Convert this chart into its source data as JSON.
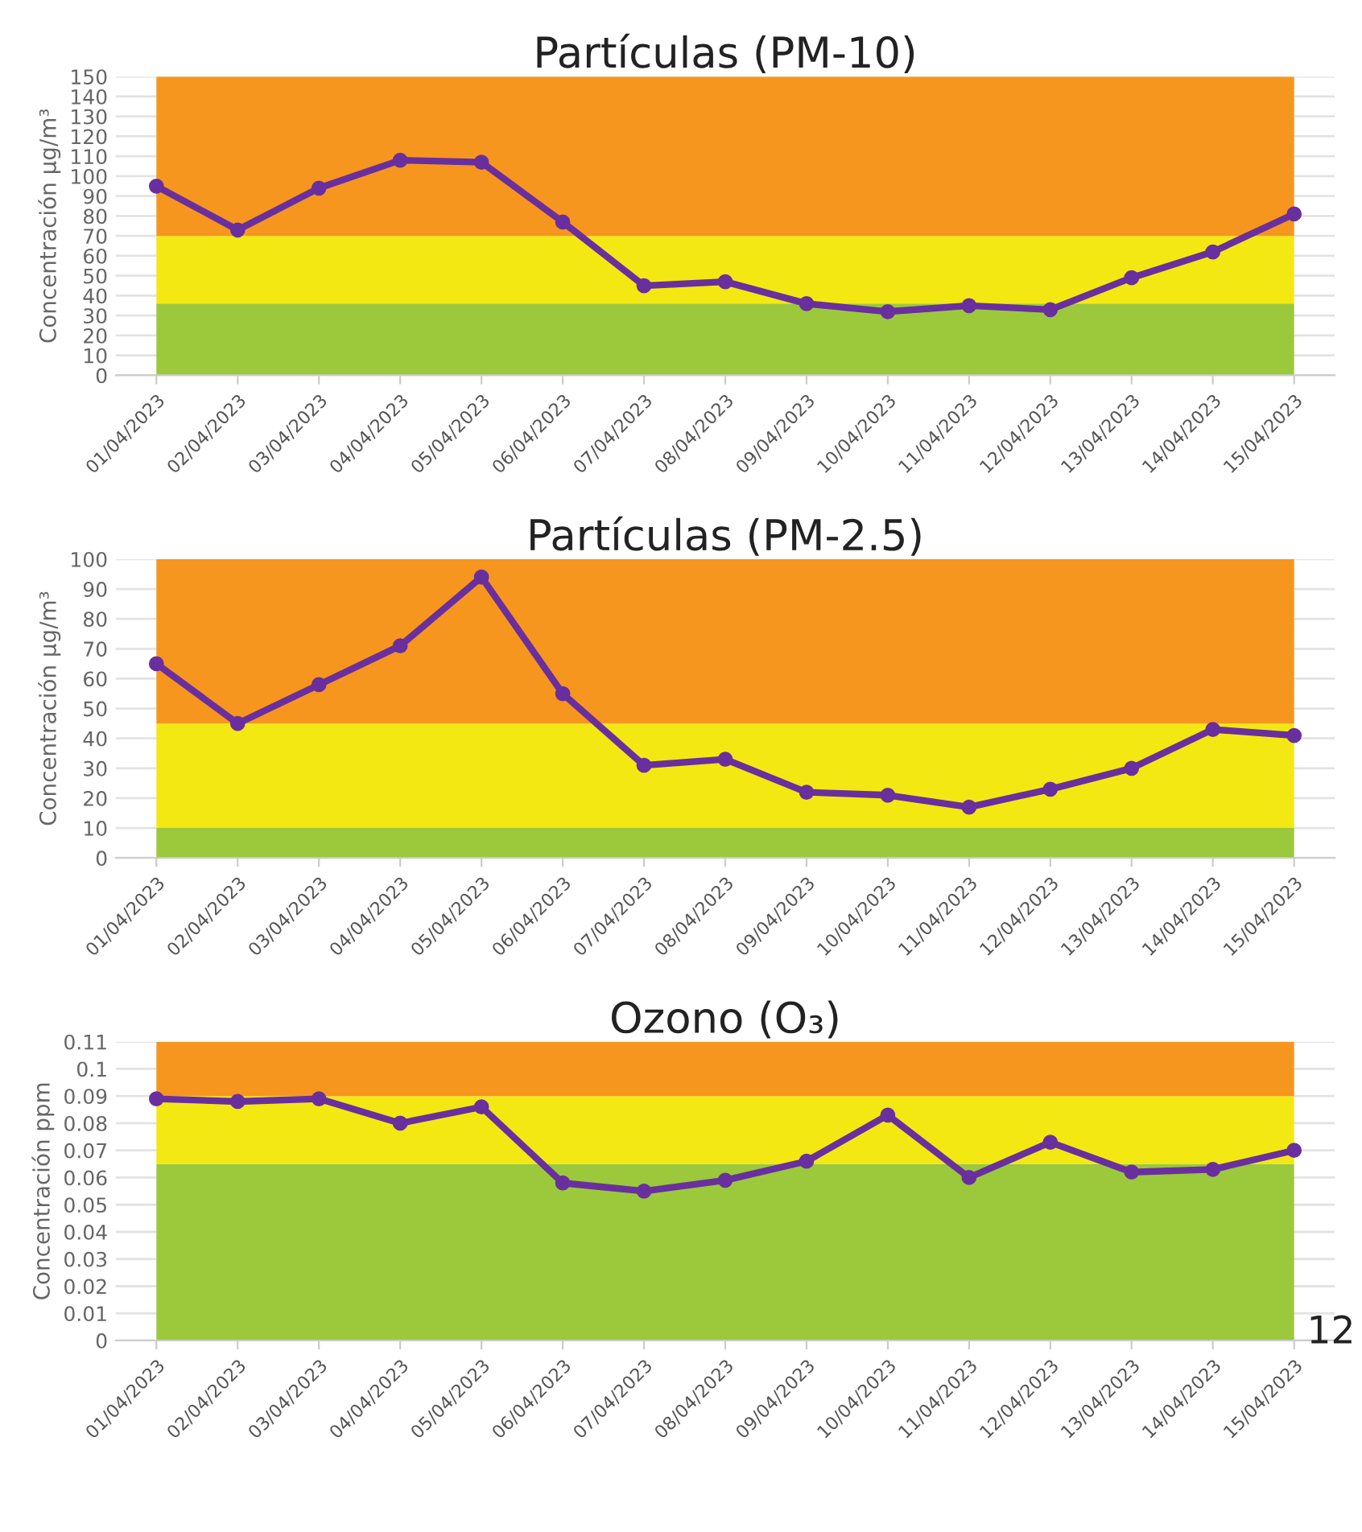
{
  "chart_data": [
    {
      "type": "line",
      "title": "Partículas (PM-10)",
      "ylabel": "Concentración µg/m³",
      "categories": [
        "01/04/2023",
        "02/04/2023",
        "03/04/2023",
        "04/04/2023",
        "05/04/2023",
        "06/04/2023",
        "07/04/2023",
        "08/04/2023",
        "09/04/2023",
        "10/04/2023",
        "11/04/2023",
        "12/04/2023",
        "13/04/2023",
        "14/04/2023",
        "15/04/2023"
      ],
      "series": [
        {
          "color": "#6a2f9e",
          "values": [
            95,
            73,
            94,
            108,
            107,
            77,
            45,
            47,
            36,
            32,
            35,
            33,
            49,
            62,
            81
          ]
        }
      ],
      "ylim": [
        0,
        150
      ],
      "yticks": [
        0,
        10,
        20,
        30,
        40,
        50,
        60,
        70,
        80,
        90,
        100,
        110,
        120,
        130,
        140,
        150
      ],
      "bands": [
        {
          "axis": "y",
          "from": 0,
          "to": 36,
          "color": "#9bc93b"
        },
        {
          "axis": "y",
          "from": 36,
          "to": 70,
          "color": "#f4e812"
        },
        {
          "axis": "y",
          "from": 70,
          "to": 150,
          "color": "#f7961e"
        }
      ],
      "grid": "y",
      "legend": false,
      "marker": "circle",
      "line_style": "solid"
    },
    {
      "type": "line",
      "title": "Partículas (PM-2.5)",
      "ylabel": "Concentración µg/m³",
      "categories": [
        "01/04/2023",
        "02/04/2023",
        "03/04/2023",
        "04/04/2023",
        "05/04/2023",
        "06/04/2023",
        "07/04/2023",
        "08/04/2023",
        "09/04/2023",
        "10/04/2023",
        "11/04/2023",
        "12/04/2023",
        "13/04/2023",
        "14/04/2023",
        "15/04/2023"
      ],
      "series": [
        {
          "color": "#6a2f9e",
          "values": [
            65,
            45,
            58,
            71,
            94,
            55,
            31,
            33,
            22,
            21,
            17,
            23,
            30,
            43,
            41
          ]
        }
      ],
      "ylim": [
        0,
        100
      ],
      "yticks": [
        0,
        10,
        20,
        30,
        40,
        50,
        60,
        70,
        80,
        90,
        100
      ],
      "bands": [
        {
          "axis": "y",
          "from": 0,
          "to": 10,
          "color": "#9bc93b"
        },
        {
          "axis": "y",
          "from": 10,
          "to": 45,
          "color": "#f4e812"
        },
        {
          "axis": "y",
          "from": 45,
          "to": 100,
          "color": "#f7961e"
        }
      ],
      "grid": "y",
      "legend": false,
      "marker": "circle",
      "line_style": "solid"
    },
    {
      "type": "line",
      "title": "Ozono (O₃)",
      "ylabel": "Concentración ppm",
      "categories": [
        "01/04/2023",
        "02/04/2023",
        "03/04/2023",
        "04/04/2023",
        "05/04/2023",
        "06/04/2023",
        "07/04/2023",
        "08/04/2023",
        "09/04/2023",
        "10/04/2023",
        "11/04/2023",
        "12/04/2023",
        "13/04/2023",
        "14/04/2023",
        "15/04/2023"
      ],
      "series": [
        {
          "color": "#6a2f9e",
          "values": [
            0.089,
            0.088,
            0.089,
            0.08,
            0.086,
            0.058,
            0.055,
            0.059,
            0.066,
            0.083,
            0.06,
            0.073,
            0.062,
            0.063,
            0.07
          ]
        }
      ],
      "ylim": [
        0,
        0.11
      ],
      "yticks": [
        0,
        0.01,
        0.02,
        0.03,
        0.04,
        0.05,
        0.06,
        0.07,
        0.08,
        0.09,
        0.1,
        0.11
      ],
      "bands": [
        {
          "axis": "y",
          "from": 0,
          "to": 0.065,
          "color": "#9bc93b"
        },
        {
          "axis": "y",
          "from": 0.065,
          "to": 0.09,
          "color": "#f4e812"
        },
        {
          "axis": "y",
          "from": 0.09,
          "to": 0.11,
          "color": "#f7961e"
        }
      ],
      "grid": "y",
      "legend": false,
      "marker": "circle",
      "line_style": "solid",
      "annotations": [
        "12"
      ]
    }
  ]
}
